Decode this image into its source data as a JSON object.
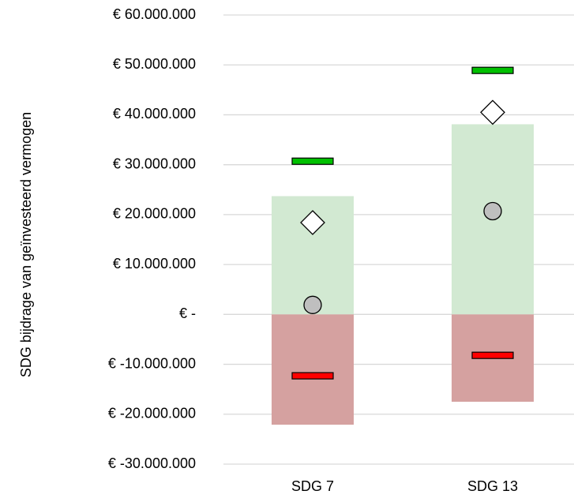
{
  "chart_data": {
    "type": "bar",
    "y_label": "SDG bijdrage van geïnvesteerd vermogen",
    "categories": [
      "SDG 7",
      "SDG 13"
    ],
    "series": [
      {
        "style": "bar",
        "color": "#d2e9d2",
        "values": [
          23700000,
          38100000
        ]
      },
      {
        "style": "bar",
        "color": "#d5a1a0",
        "values": [
          -22100000,
          -17500000
        ]
      },
      {
        "style": "dash",
        "color": "#00c000",
        "values": [
          30700000,
          48900000
        ]
      },
      {
        "style": "diamond",
        "color": "#ffffff",
        "values": [
          18400000,
          40500000
        ]
      },
      {
        "style": "circle",
        "color": "#bfbfbf",
        "values": [
          1900000,
          20700000
        ]
      },
      {
        "style": "dash",
        "color": "#ff0000",
        "values": [
          -12300000,
          -8200000
        ]
      }
    ],
    "ylim": [
      -30000000,
      60000000
    ],
    "yticks": [
      {
        "value": -30000000,
        "label": "€ -30.000.000"
      },
      {
        "value": -20000000,
        "label": "€ -20.000.000"
      },
      {
        "value": -10000000,
        "label": "€ -10.000.000"
      },
      {
        "value": 0,
        "label": "€ -"
      },
      {
        "value": 10000000,
        "label": "€ 10.000.000"
      },
      {
        "value": 20000000,
        "label": "€ 20.000.000"
      },
      {
        "value": 30000000,
        "label": "€ 30.000.000"
      },
      {
        "value": 40000000,
        "label": "€ 40.000.000"
      },
      {
        "value": 50000000,
        "label": "€ 50.000.000"
      },
      {
        "value": 60000000,
        "label": "€ 60.000.000"
      }
    ],
    "grid": true
  }
}
